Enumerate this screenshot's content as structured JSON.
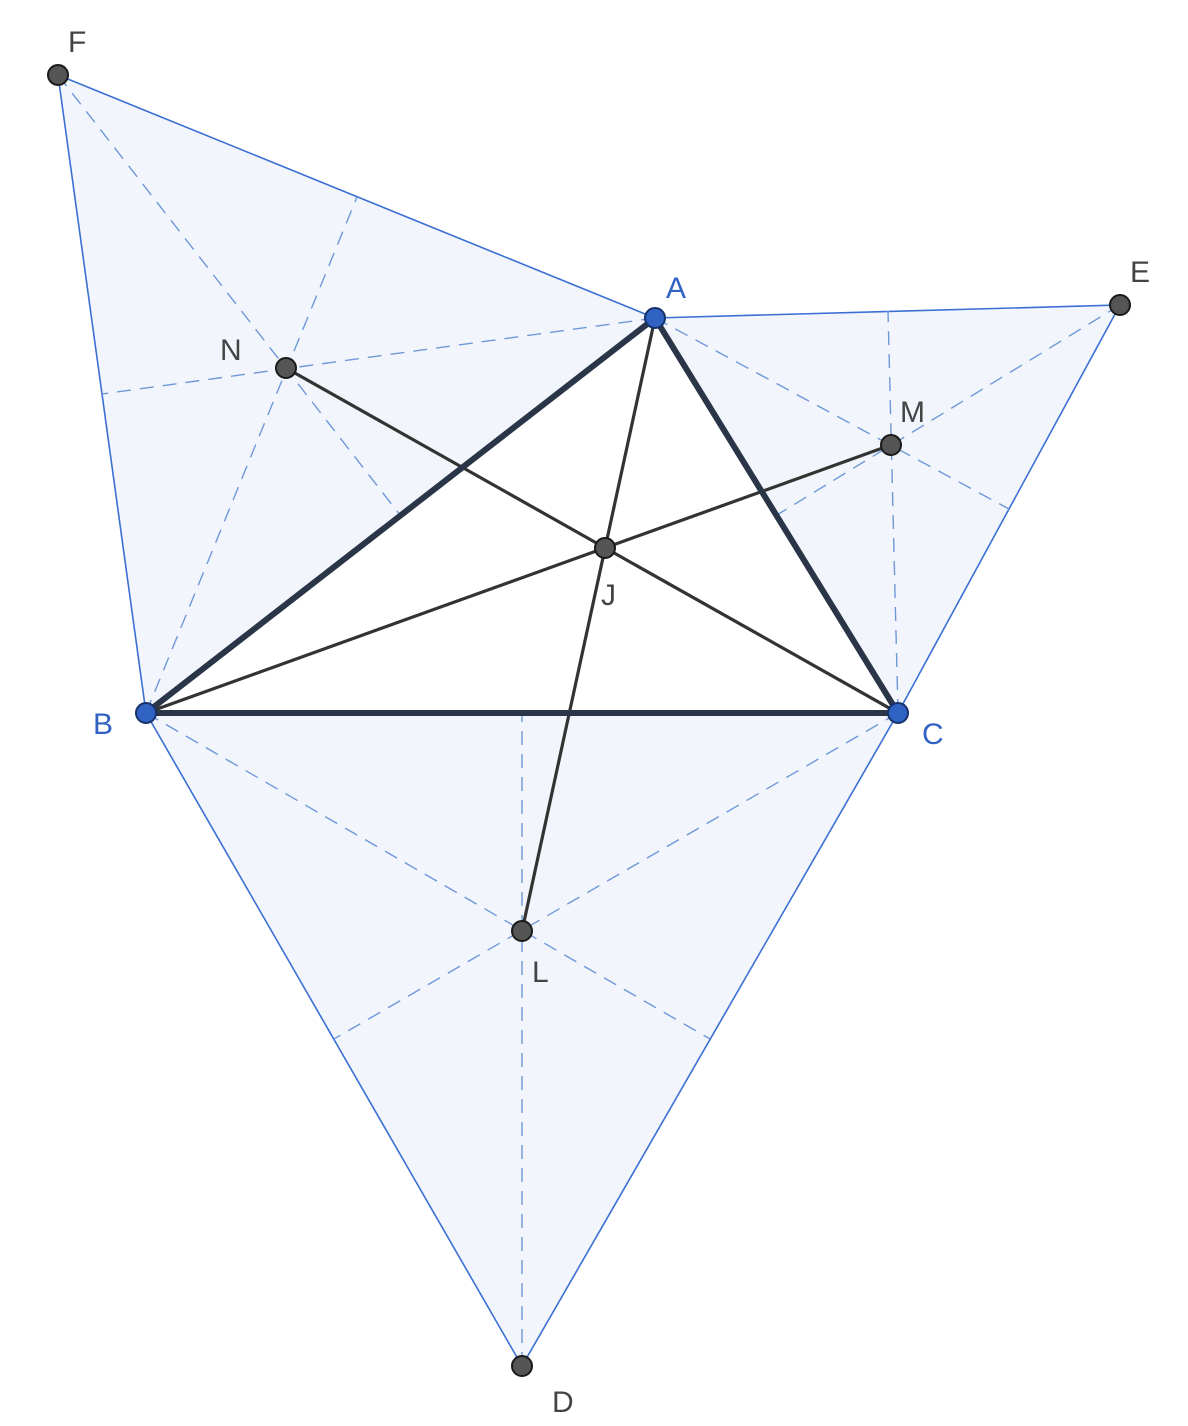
{
  "colors": {
    "face_fill": "#f2f6fc",
    "blue_edge": "#3b6fd4",
    "dashed": "#6f98d8",
    "main_triangle": "#2a3547",
    "cevians": "#333333",
    "vertex_blue": "#2f62c2",
    "point_gray": "#555555"
  },
  "points": {
    "A": "A",
    "B": "B",
    "C": "C",
    "D": "D",
    "E": "E",
    "F": "F",
    "J": "J",
    "L": "L",
    "M": "M",
    "N": "N"
  }
}
